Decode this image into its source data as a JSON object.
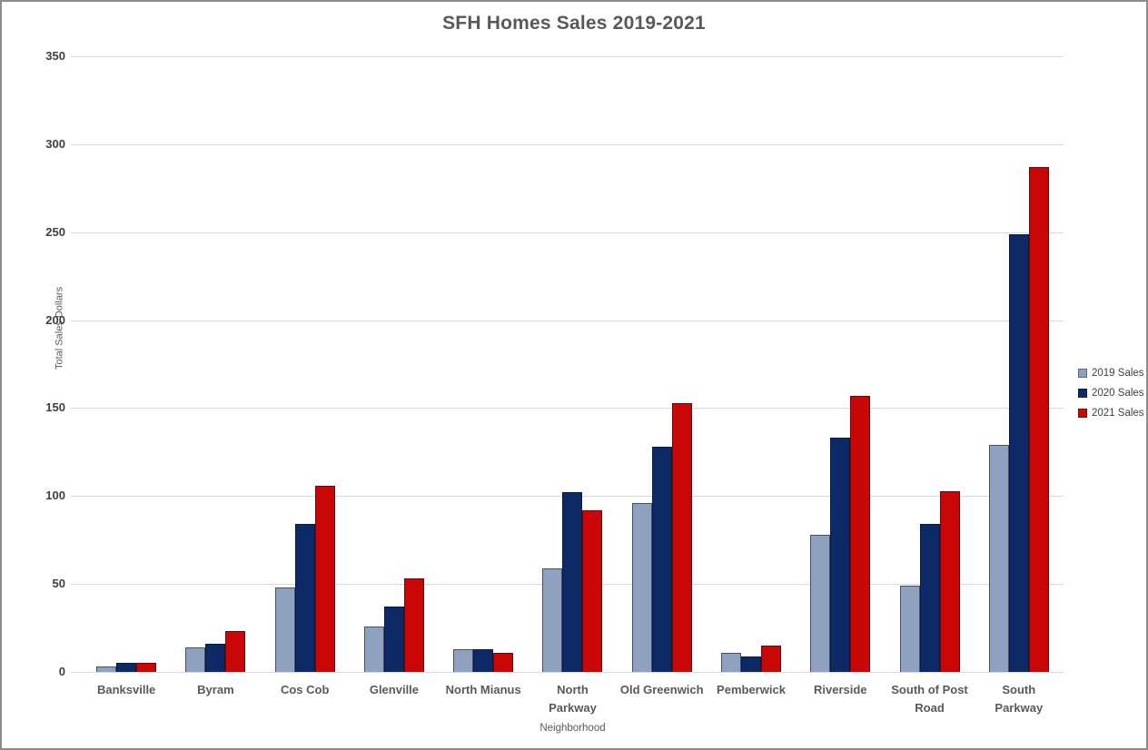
{
  "chart_data": {
    "type": "bar",
    "title": "SFH Homes Sales 2019-2021",
    "xlabel": "Neighborhood",
    "ylabel": "Total Sales Dollars",
    "ylim": [
      0,
      350
    ],
    "ytick_step": 50,
    "grid": true,
    "legend_position": "right",
    "categories": [
      "Banksville",
      "Byram",
      "Cos Cob",
      "Glenville",
      "North Mianus",
      "North\nParkway",
      "Old Greenwich",
      "Pemberwick",
      "Riverside",
      "South of Post\nRoad",
      "South\nParkway"
    ],
    "series": [
      {
        "name": "2019 Sales",
        "color": "#8EA2C0",
        "values": [
          3,
          14,
          48,
          26,
          13,
          59,
          96,
          11,
          78,
          49,
          129
        ]
      },
      {
        "name": "2020 Sales",
        "color": "#0D2A66",
        "values": [
          5,
          16,
          84,
          37,
          13,
          102,
          128,
          9,
          133,
          84,
          249
        ]
      },
      {
        "name": "2021 Sales",
        "color": "#C90707",
        "values": [
          5,
          23,
          106,
          53,
          11,
          92,
          153,
          15,
          157,
          103,
          287
        ]
      }
    ]
  },
  "colors": {
    "gridline": "#D9D9D9",
    "title_text": "#595959",
    "tick_text": "#404040",
    "category_text": "#595959",
    "axis_title_text": "#595959",
    "chart_border": "#8C8C8C"
  }
}
